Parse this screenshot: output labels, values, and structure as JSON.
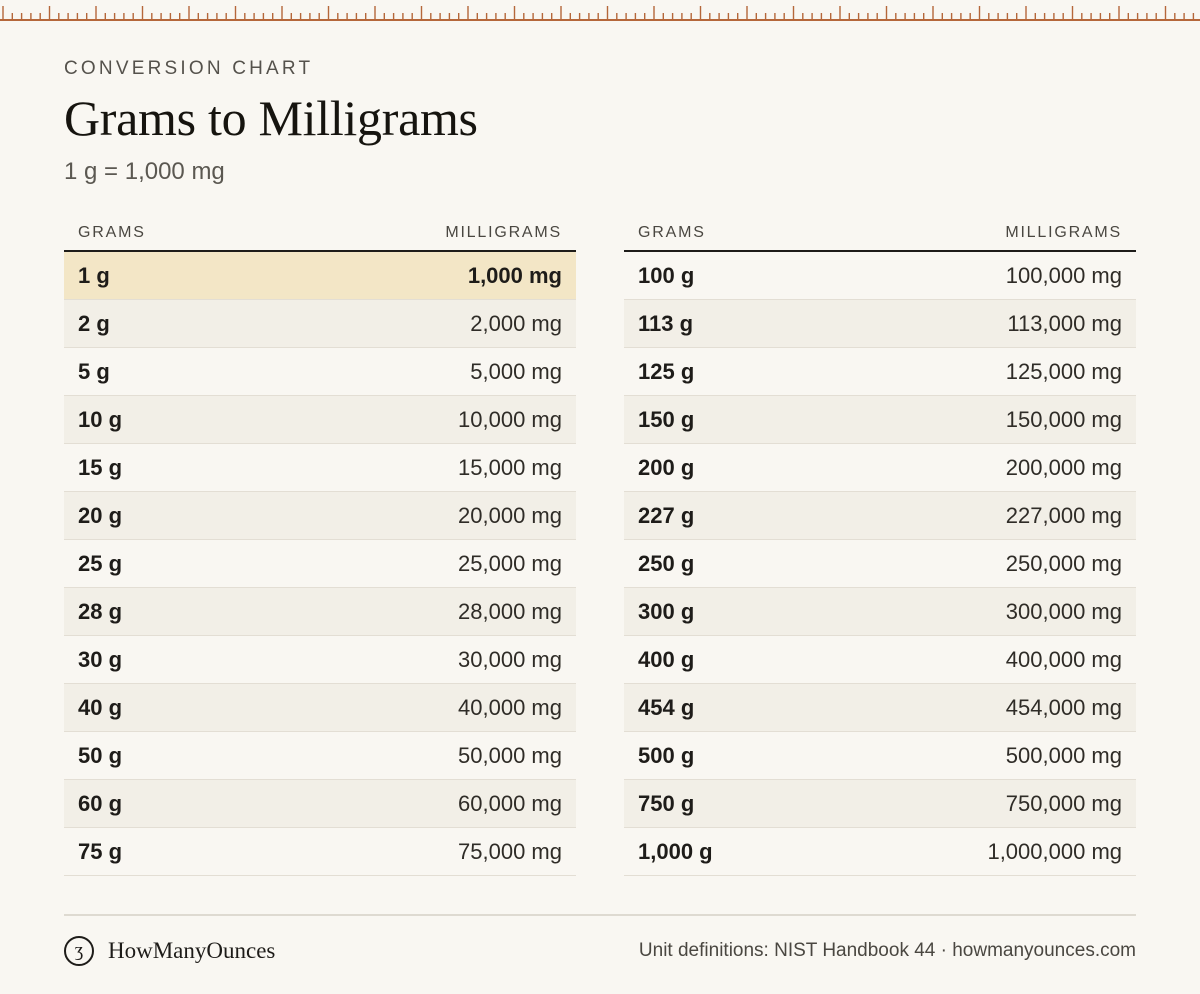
{
  "header": {
    "eyebrow": "CONVERSION CHART",
    "title": "Grams to Milligrams",
    "subtitle": "1 g = 1,000 mg"
  },
  "colors": {
    "ruler": "#b5673a",
    "highlight": "#f3e6c6",
    "alt_row": "#f2efe7",
    "background": "#f9f7f2"
  },
  "tables": [
    {
      "headers": {
        "grams": "GRAMS",
        "milligrams": "MILLIGRAMS"
      },
      "rows": [
        {
          "g": "1 g",
          "mg": "1,000 mg",
          "highlighted": true
        },
        {
          "g": "2 g",
          "mg": "2,000 mg"
        },
        {
          "g": "5 g",
          "mg": "5,000 mg"
        },
        {
          "g": "10 g",
          "mg": "10,000 mg"
        },
        {
          "g": "15 g",
          "mg": "15,000 mg"
        },
        {
          "g": "20 g",
          "mg": "20,000 mg"
        },
        {
          "g": "25 g",
          "mg": "25,000 mg"
        },
        {
          "g": "28 g",
          "mg": "28,000 mg"
        },
        {
          "g": "30 g",
          "mg": "30,000 mg"
        },
        {
          "g": "40 g",
          "mg": "40,000 mg"
        },
        {
          "g": "50 g",
          "mg": "50,000 mg"
        },
        {
          "g": "60 g",
          "mg": "60,000 mg"
        },
        {
          "g": "75 g",
          "mg": "75,000 mg"
        }
      ]
    },
    {
      "headers": {
        "grams": "GRAMS",
        "milligrams": "MILLIGRAMS"
      },
      "rows": [
        {
          "g": "100 g",
          "mg": "100,000 mg"
        },
        {
          "g": "113 g",
          "mg": "113,000 mg"
        },
        {
          "g": "125 g",
          "mg": "125,000 mg"
        },
        {
          "g": "150 g",
          "mg": "150,000 mg"
        },
        {
          "g": "200 g",
          "mg": "200,000 mg"
        },
        {
          "g": "227 g",
          "mg": "227,000 mg"
        },
        {
          "g": "250 g",
          "mg": "250,000 mg"
        },
        {
          "g": "300 g",
          "mg": "300,000 mg"
        },
        {
          "g": "400 g",
          "mg": "400,000 mg"
        },
        {
          "g": "454 g",
          "mg": "454,000 mg"
        },
        {
          "g": "500 g",
          "mg": "500,000 mg"
        },
        {
          "g": "750 g",
          "mg": "750,000 mg"
        },
        {
          "g": "1,000 g",
          "mg": "1,000,000 mg"
        }
      ]
    }
  ],
  "footer": {
    "brand_mark": "ʒ",
    "brand_name": "HowManyOunces",
    "source": "Unit definitions: NIST Handbook 44 · howmanyounces.com"
  }
}
